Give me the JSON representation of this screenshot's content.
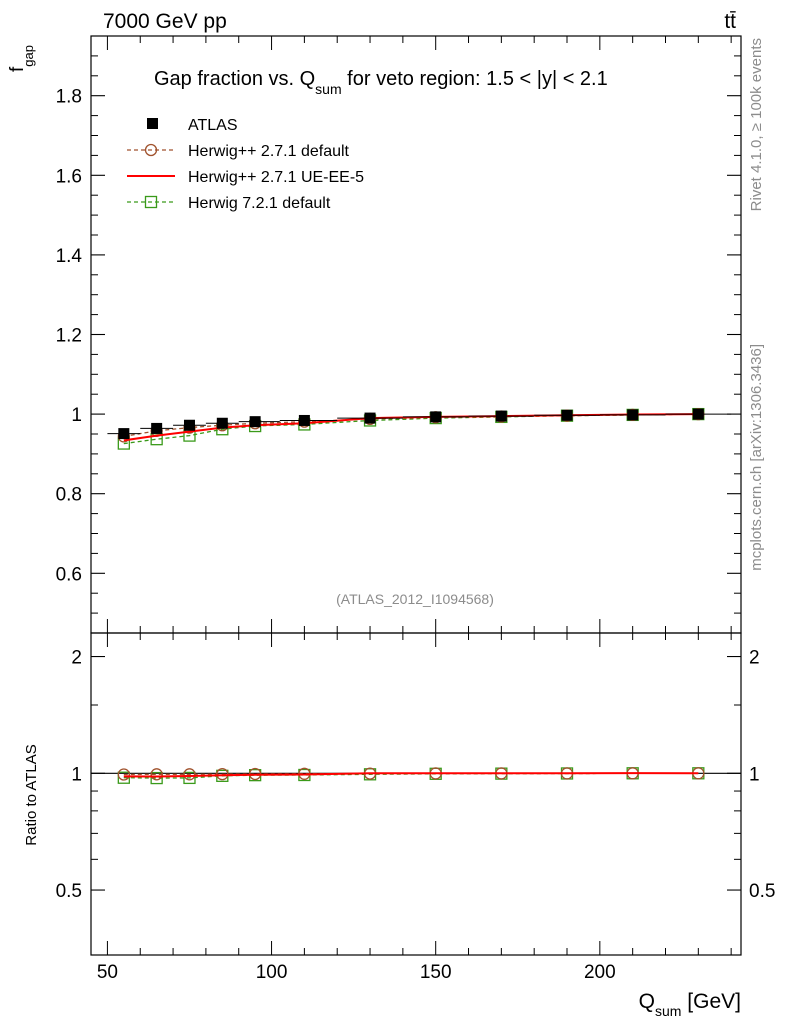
{
  "header": {
    "energy_label": "7000 GeV pp",
    "process_label": "tt̄"
  },
  "side": {
    "rivet_label": "Rivet 4.1.0, ≥ 100k events",
    "source_label": "mcplots.cern.ch [arXiv:1306.3436]"
  },
  "chart_data": [
    {
      "type": "line",
      "panel": "main",
      "title_main": "Gap fraction vs. Q",
      "title_sub": "sum",
      "title_rest": " for veto region: 1.5 < |y| < 2.1",
      "ylabel_main": "f",
      "ylabel_sub": "gap",
      "analysis_label": "(ATLAS_2012_I1094568)",
      "xlim": [
        45,
        243
      ],
      "ylim": [
        0.45,
        1.95
      ],
      "yticks": [
        0.6,
        0.8,
        1,
        1.2,
        1.4,
        1.6,
        1.8
      ],
      "ytick_labels": [
        "0.6",
        "0.8",
        "1",
        "1.2",
        "1.4",
        "1.6",
        "1.8"
      ],
      "x": [
        55,
        65,
        75,
        85,
        95,
        110,
        130,
        150,
        170,
        190,
        210,
        230
      ],
      "series": [
        {
          "name": "ATLAS",
          "marker": "filled-square",
          "color": "#000000",
          "values": [
            0.951,
            0.964,
            0.972,
            0.977,
            0.981,
            0.984,
            0.99,
            0.993,
            0.995,
            0.997,
            0.998,
            1.0
          ]
        },
        {
          "name": "Herwig++ 2.7.1 default",
          "marker": "open-circle",
          "color": "#a0522d",
          "values": [
            0.944,
            0.958,
            0.966,
            0.972,
            0.977,
            0.981,
            0.988,
            0.992,
            0.994,
            0.996,
            0.998,
            1.0
          ]
        },
        {
          "name": "Herwig++ 2.7.1 UE-EE-5",
          "marker": "none",
          "color": "#ff0000",
          "values": [
            0.934,
            0.946,
            0.956,
            0.966,
            0.972,
            0.977,
            0.99,
            0.993,
            0.995,
            0.997,
            0.999,
            1.0
          ]
        },
        {
          "name": "Herwig 7.2.1 default",
          "marker": "open-square",
          "color": "#3a9a1a",
          "values": [
            0.926,
            0.937,
            0.946,
            0.962,
            0.97,
            0.974,
            0.984,
            0.99,
            0.993,
            0.996,
            0.998,
            1.0
          ]
        }
      ]
    },
    {
      "type": "line",
      "panel": "ratio",
      "ylabel": "Ratio to ATLAS",
      "xlabel_main": "Q",
      "xlabel_sub": "sum",
      "xlabel_rest": " [GeV]",
      "xlim": [
        45,
        243
      ],
      "ylim": [
        0.34,
        2.3
      ],
      "yticks": [
        0.5,
        1,
        2
      ],
      "ytick_labels": [
        "0.5",
        "1",
        "2"
      ],
      "xticks": [
        50,
        100,
        150,
        200
      ],
      "xtick_labels": [
        "50",
        "100",
        "150",
        "200"
      ],
      "x": [
        55,
        65,
        75,
        85,
        95,
        110,
        130,
        150,
        170,
        190,
        210,
        230
      ],
      "series": [
        {
          "name": "Herwig++ 2.7.1 default",
          "marker": "open-circle",
          "color": "#a0522d",
          "values": [
            0.993,
            0.994,
            0.994,
            0.995,
            0.996,
            0.997,
            0.998,
            0.999,
            0.999,
            0.999,
            1.0,
            1.0
          ]
        },
        {
          "name": "Herwig++ 2.7.1 UE-EE-5",
          "marker": "none",
          "color": "#ff0000",
          "values": [
            0.982,
            0.981,
            0.984,
            0.989,
            0.991,
            0.993,
            1.0,
            1.0,
            1.0,
            1.0,
            1.001,
            1.0
          ]
        },
        {
          "name": "Herwig 7.2.1 default",
          "marker": "open-square",
          "color": "#3a9a1a",
          "values": [
            0.974,
            0.972,
            0.973,
            0.985,
            0.989,
            0.99,
            0.994,
            0.997,
            0.998,
            0.999,
            1.0,
            1.0
          ]
        }
      ]
    }
  ]
}
